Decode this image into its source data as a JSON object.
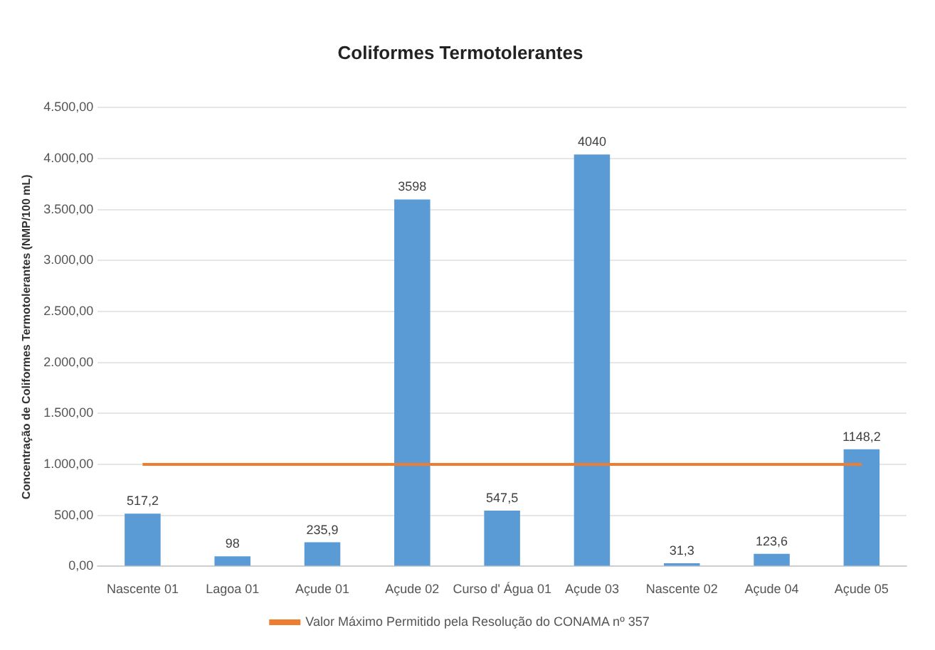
{
  "chart_data": {
    "type": "bar",
    "title": "Coliformes Termotolerantes",
    "ylabel": "Concentração de Coliformes Termotolerantes (NMP/100 mL)",
    "categories": [
      "Nascente 01",
      "Lagoa 01",
      "Açude 01",
      "Açude 02",
      "Curso d' Água 01",
      "Açude 03",
      "Nascente 02",
      "Açude 04",
      "Açude 05"
    ],
    "series": [
      {
        "color": "#5b9bd5",
        "values": [
          517.2,
          98,
          235.9,
          3598,
          547.5,
          4040,
          31.3,
          123.6,
          1148.2
        ],
        "value_labels": [
          "517,2",
          "98",
          "235,9",
          "3598",
          "547,5",
          "4040",
          "31,3",
          "123,6",
          "1148,2"
        ]
      },
      {
        "type": "line",
        "name": "Valor Máximo Permitido pela Resolução do CONAMA nº 357",
        "color": "#ed7d31",
        "values": [
          1000,
          1000,
          1000,
          1000,
          1000,
          1000,
          1000,
          1000,
          1000
        ]
      }
    ],
    "ylim": [
      0,
      4500
    ],
    "yticks": [
      {
        "value": 0,
        "label": "0,00"
      },
      {
        "value": 500,
        "label": "500,00"
      },
      {
        "value": 1000,
        "label": "1.000,00"
      },
      {
        "value": 1500,
        "label": "1.500,00"
      },
      {
        "value": 2000,
        "label": "2.000,00"
      },
      {
        "value": 2500,
        "label": "2.500,00"
      },
      {
        "value": 3000,
        "label": "3.000,00"
      },
      {
        "value": 3500,
        "label": "3.500,00"
      },
      {
        "value": 4000,
        "label": "4.000,00"
      },
      {
        "value": 4500,
        "label": "4.500,00"
      }
    ],
    "grid": "y",
    "legend": "bottom",
    "marker": "none"
  }
}
